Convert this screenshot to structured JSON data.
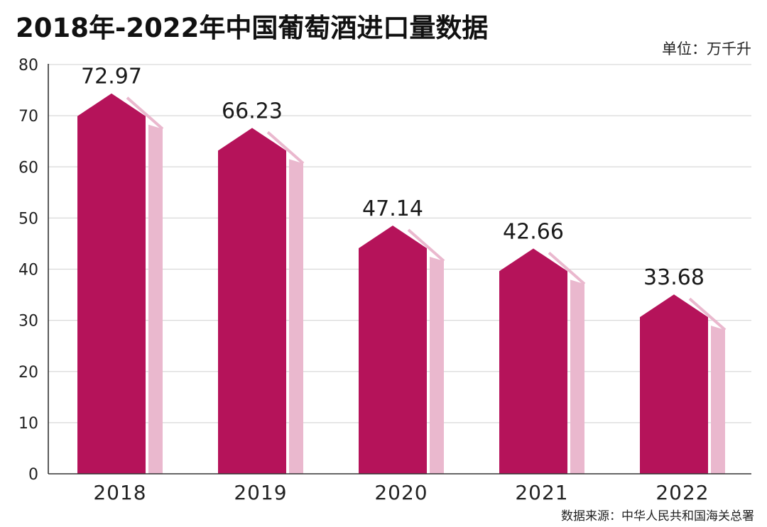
{
  "chart_data": {
    "type": "bar",
    "title": "2018年-2022年中国葡萄酒进口量数据",
    "unit": "单位：万千升",
    "source": "数据来源：中华人民共和国海关总署",
    "categories": [
      "2018",
      "2019",
      "2020",
      "2021",
      "2022"
    ],
    "values": [
      72.97,
      66.23,
      47.14,
      42.66,
      33.68
    ],
    "value_labels": [
      "72.97",
      "66.23",
      "47.14",
      "42.66",
      "33.68"
    ],
    "ylim": [
      0,
      80
    ],
    "yticks": [
      "0",
      "10",
      "20",
      "30",
      "40",
      "50",
      "60",
      "70",
      "80"
    ],
    "grid": true,
    "colors": {
      "bar": "#b5135a",
      "bar_shadow": "#eab8ce"
    }
  }
}
